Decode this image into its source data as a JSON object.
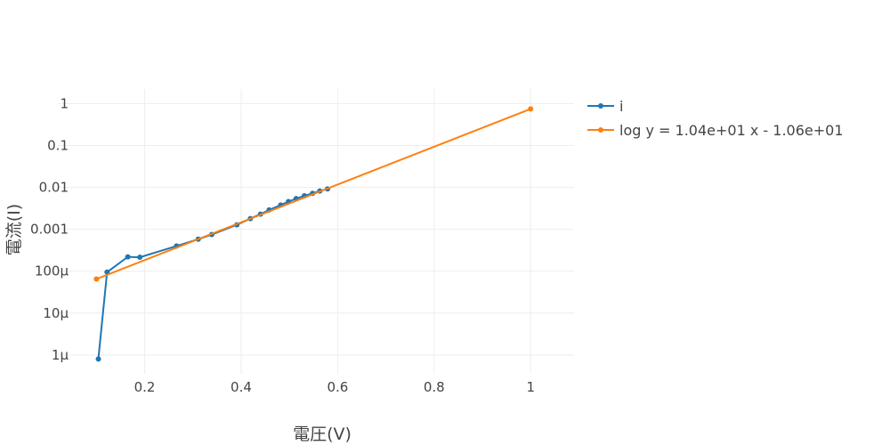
{
  "chart_data": {
    "type": "line",
    "title": "",
    "xlabel": "電圧(V)",
    "ylabel": "電流(I)",
    "xlim": [
      0.02,
      1.09
    ],
    "ylim_log10": [
      -6.45,
      0.35
    ],
    "yscale": "log",
    "x_ticks": [
      0.2,
      0.4,
      0.6,
      0.8,
      1
    ],
    "x_tick_labels": [
      "0.2",
      "0.4",
      "0.6",
      "0.8",
      "1"
    ],
    "y_ticks_log10": [
      0,
      -1,
      -2,
      -3,
      -4,
      -5,
      -6
    ],
    "y_tick_labels": [
      "1",
      "0.1",
      "0.01",
      "0.001",
      "100μ",
      "10μ",
      "1μ"
    ],
    "grid": true,
    "legend_position": "top-right",
    "series": [
      {
        "name": "i",
        "color": "#1f77b4",
        "x": [
          0.104,
          0.122,
          0.165,
          0.19,
          0.266,
          0.311,
          0.339,
          0.391,
          0.419,
          0.44,
          0.458,
          0.482,
          0.498,
          0.514,
          0.531,
          0.548,
          0.563,
          0.579
        ],
        "y": [
          8e-07,
          9.5e-05,
          0.00022,
          0.000215,
          0.0004,
          0.00058,
          0.00075,
          0.00128,
          0.0018,
          0.0023,
          0.0029,
          0.0038,
          0.0046,
          0.0054,
          0.0063,
          0.0072,
          0.0082,
          0.0092
        ]
      },
      {
        "name": "log y = 1.04e+01 x - 1.06e+01",
        "color": "#ff7f0e",
        "x": [
          0.1,
          1
        ],
        "y": [
          6.5e-05,
          0.75
        ]
      }
    ]
  }
}
